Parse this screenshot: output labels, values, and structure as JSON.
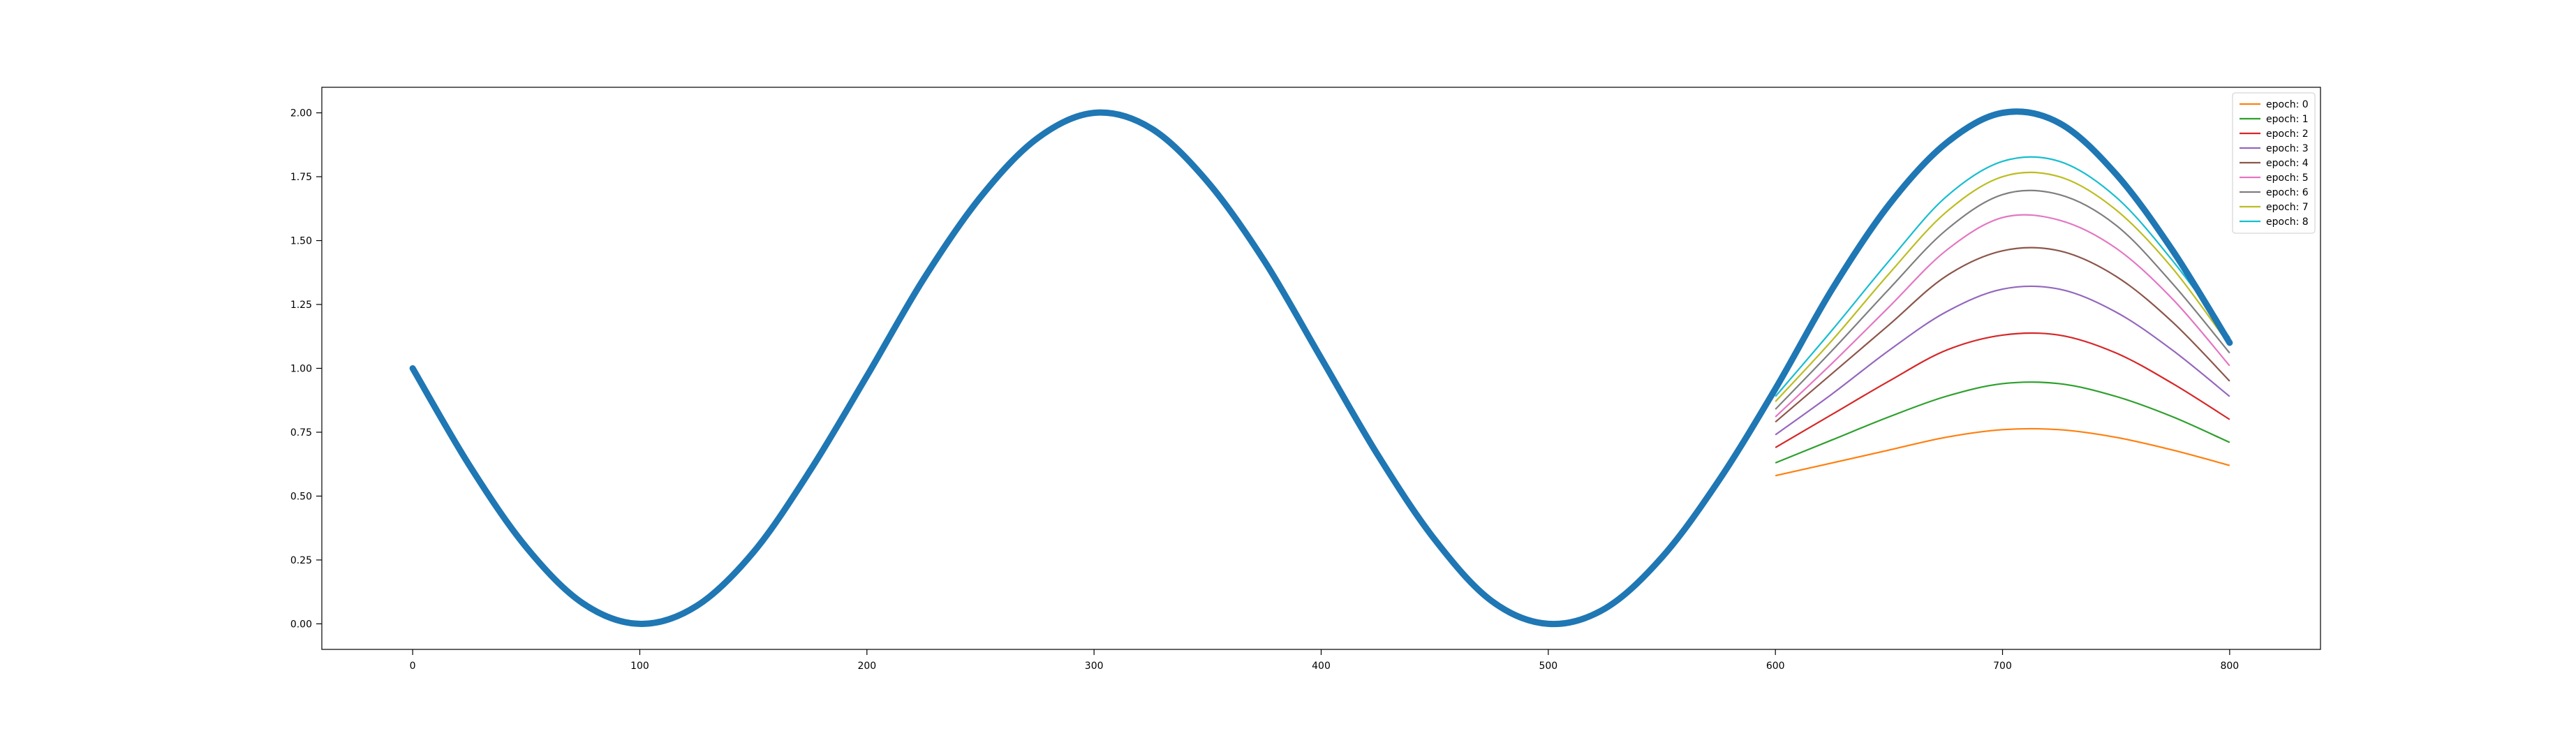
{
  "chart_data": {
    "type": "line",
    "title": "",
    "xlabel": "",
    "ylabel": "",
    "xlim": [
      -40,
      840
    ],
    "ylim": [
      -0.1,
      2.1
    ],
    "grid": false,
    "legend_position": "top-right",
    "x_ticks": [
      0,
      100,
      200,
      300,
      400,
      500,
      600,
      700,
      800
    ],
    "x_tick_labels": [
      "0",
      "100",
      "200",
      "300",
      "400",
      "500",
      "600",
      "700",
      "800"
    ],
    "y_ticks": [
      0,
      0.25,
      0.5,
      0.75,
      1.0,
      1.25,
      1.5,
      1.75,
      2.0
    ],
    "y_tick_labels": [
      "0.00",
      "0.25",
      "0.50",
      "0.75",
      "1.00",
      "1.25",
      "1.50",
      "1.75",
      "2.00"
    ],
    "ground_truth": {
      "color": "#1f77b4",
      "x": [
        0,
        25,
        50,
        75,
        100,
        125,
        150,
        175,
        200,
        225,
        250,
        275,
        300,
        325,
        350,
        375,
        400,
        425,
        450,
        475,
        500,
        525,
        550,
        575,
        600,
        625,
        650,
        675,
        700,
        725,
        750,
        775,
        800
      ],
      "y": [
        1.0,
        0.62,
        0.3,
        0.08,
        0.0,
        0.07,
        0.28,
        0.6,
        0.97,
        1.35,
        1.67,
        1.9,
        2.0,
        1.94,
        1.73,
        1.42,
        1.04,
        0.66,
        0.33,
        0.09,
        0.0,
        0.06,
        0.26,
        0.56,
        0.92,
        1.31,
        1.64,
        1.88,
        2.0,
        1.96,
        1.76,
        1.46,
        1.1
      ]
    },
    "x": [
      600,
      625,
      650,
      675,
      700,
      725,
      750,
      775,
      800
    ],
    "series": [
      {
        "name": "epoch: 0",
        "color": "#ff7f0e",
        "values": [
          0.58,
          0.63,
          0.68,
          0.73,
          0.76,
          0.76,
          0.73,
          0.68,
          0.62
        ]
      },
      {
        "name": "epoch: 1",
        "color": "#2ca02c",
        "values": [
          0.63,
          0.72,
          0.81,
          0.89,
          0.94,
          0.94,
          0.89,
          0.81,
          0.71
        ]
      },
      {
        "name": "epoch: 2",
        "color": "#d62728",
        "values": [
          0.69,
          0.82,
          0.95,
          1.07,
          1.13,
          1.13,
          1.06,
          0.94,
          0.8
        ]
      },
      {
        "name": "epoch: 3",
        "color": "#9467bd",
        "values": [
          0.74,
          0.9,
          1.07,
          1.22,
          1.31,
          1.31,
          1.22,
          1.07,
          0.89
        ]
      },
      {
        "name": "epoch: 4",
        "color": "#8c564b",
        "values": [
          0.79,
          0.98,
          1.17,
          1.36,
          1.46,
          1.46,
          1.36,
          1.18,
          0.95
        ]
      },
      {
        "name": "epoch: 5",
        "color": "#e377c2",
        "values": [
          0.81,
          1.02,
          1.24,
          1.46,
          1.59,
          1.58,
          1.47,
          1.27,
          1.01
        ]
      },
      {
        "name": "epoch: 6",
        "color": "#7f7f7f",
        "values": [
          0.84,
          1.07,
          1.31,
          1.54,
          1.68,
          1.68,
          1.56,
          1.33,
          1.06
        ]
      },
      {
        "name": "epoch: 7",
        "color": "#bcbd22",
        "values": [
          0.87,
          1.11,
          1.37,
          1.61,
          1.75,
          1.75,
          1.62,
          1.39,
          1.09
        ]
      },
      {
        "name": "epoch: 8",
        "color": "#17becf",
        "values": [
          0.89,
          1.15,
          1.42,
          1.67,
          1.81,
          1.81,
          1.67,
          1.42,
          1.12
        ]
      }
    ]
  }
}
